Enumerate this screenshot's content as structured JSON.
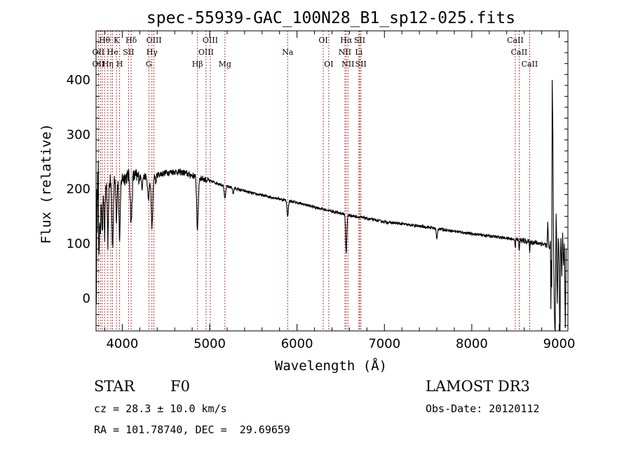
{
  "chart_data": {
    "type": "line",
    "title": "spec-55939-GAC_100N28_B1_sp12-025.fits",
    "xlabel": "Wavelength (Å)",
    "ylabel": "Flux (relative)",
    "xlim": [
      3700,
      9100
    ],
    "ylim": [
      -60,
      490
    ],
    "xticks": [
      4000,
      5000,
      6000,
      7000,
      8000,
      9000
    ],
    "yticks": [
      0,
      100,
      200,
      300,
      400
    ],
    "continuum": [
      [
        3700,
        175
      ],
      [
        3800,
        210
      ],
      [
        3900,
        215
      ],
      [
        4000,
        220
      ],
      [
        4100,
        225
      ],
      [
        4200,
        222
      ],
      [
        4300,
        222
      ],
      [
        4400,
        226
      ],
      [
        4500,
        230
      ],
      [
        4600,
        232
      ],
      [
        4700,
        230
      ],
      [
        4800,
        225
      ],
      [
        5000,
        215
      ],
      [
        5200,
        205
      ],
      [
        5500,
        192
      ],
      [
        5800,
        182
      ],
      [
        6000,
        175
      ],
      [
        6300,
        163
      ],
      [
        6600,
        152
      ],
      [
        7000,
        140
      ],
      [
        7500,
        130
      ],
      [
        8000,
        118
      ],
      [
        8400,
        110
      ],
      [
        8600,
        105
      ],
      [
        8800,
        100
      ],
      [
        8900,
        95
      ],
      [
        8950,
        90
      ],
      [
        9000,
        85
      ],
      [
        9100,
        80
      ]
    ],
    "absorption": [
      [
        3734,
        120,
        4
      ],
      [
        3750,
        80,
        5
      ],
      [
        3771,
        90,
        5
      ],
      [
        3798,
        100,
        6
      ],
      [
        3835,
        110,
        7
      ],
      [
        3889,
        120,
        8
      ],
      [
        3934,
        70,
        6
      ],
      [
        3970,
        110,
        8
      ],
      [
        4102,
        90,
        9
      ],
      [
        4227,
        20,
        5
      ],
      [
        4300,
        40,
        10
      ],
      [
        4340,
        95,
        9
      ],
      [
        4384,
        15,
        5
      ],
      [
        4861,
        95,
        9
      ],
      [
        5175,
        25,
        8
      ],
      [
        5270,
        12,
        5
      ],
      [
        5893,
        30,
        7
      ],
      [
        6563,
        70,
        7
      ],
      [
        7600,
        20,
        6
      ],
      [
        8498,
        12,
        4
      ],
      [
        8542,
        18,
        4
      ],
      [
        8662,
        15,
        4
      ]
    ],
    "red_end_points": [
      [
        8870,
        140
      ],
      [
        8880,
        95
      ],
      [
        8890,
        90
      ],
      [
        8900,
        105
      ],
      [
        8905,
        -20
      ],
      [
        8910,
        70
      ],
      [
        8915,
        20
      ],
      [
        8920,
        400
      ],
      [
        8928,
        300
      ],
      [
        8935,
        120
      ],
      [
        8940,
        40
      ],
      [
        8945,
        -25
      ],
      [
        8950,
        -55
      ],
      [
        8955,
        -60
      ],
      [
        8960,
        60
      ],
      [
        8965,
        155
      ],
      [
        8970,
        120
      ],
      [
        8975,
        30
      ],
      [
        8980,
        -10
      ],
      [
        8985,
        60
      ],
      [
        8990,
        110
      ],
      [
        8995,
        100
      ],
      [
        9000,
        60
      ],
      [
        9005,
        -55
      ],
      [
        9010,
        -60
      ],
      [
        9015,
        80
      ],
      [
        9020,
        110
      ],
      [
        9030,
        40
      ],
      [
        9040,
        120
      ],
      [
        9050,
        60
      ],
      [
        9060,
        100
      ],
      [
        9070,
        -55
      ],
      [
        9080,
        90
      ]
    ],
    "blue_start_points": [
      [
        3700,
        0
      ],
      [
        3703,
        -10
      ],
      [
        3706,
        60
      ],
      [
        3710,
        200
      ],
      [
        3714,
        120
      ],
      [
        3718,
        230
      ],
      [
        3722,
        180
      ],
      [
        3726,
        250
      ]
    ],
    "spectral_lines": [
      {
        "label": "Hθ",
        "wavelength": 3798,
        "row": 1
      },
      {
        "label": "K",
        "wavelength": 3934,
        "row": 1
      },
      {
        "label": "Hδ",
        "wavelength": 4102,
        "row": 1
      },
      {
        "label": "OIII",
        "wavelength": 4363,
        "row": 1
      },
      {
        "label": "OIII",
        "wavelength": 5007,
        "row": 1
      },
      {
        "label": "OI",
        "wavelength": 6300,
        "row": 1
      },
      {
        "label": "Hα",
        "wavelength": 6563,
        "row": 1
      },
      {
        "label": "SII",
        "wavelength": 6717,
        "row": 1
      },
      {
        "label": "CaII",
        "wavelength": 8498,
        "row": 1
      },
      {
        "label": "OII",
        "wavelength": 3727,
        "row": 2
      },
      {
        "label": "He",
        "wavelength": 3889,
        "row": 2
      },
      {
        "label": "SII",
        "wavelength": 4072,
        "row": 2
      },
      {
        "label": "Hγ",
        "wavelength": 4340,
        "row": 2
      },
      {
        "label": "OIII",
        "wavelength": 4959,
        "row": 2
      },
      {
        "label": "Na",
        "wavelength": 5893,
        "row": 2
      },
      {
        "label": "NII",
        "wavelength": 6548,
        "row": 2
      },
      {
        "label": "Li",
        "wavelength": 6708,
        "row": 2
      },
      {
        "label": "CaII",
        "wavelength": 8542,
        "row": 2
      },
      {
        "label": "OII",
        "wavelength": 3727,
        "row": 3
      },
      {
        "label": "Hη",
        "wavelength": 3835,
        "row": 3
      },
      {
        "label": "H",
        "wavelength": 3970,
        "row": 3
      },
      {
        "label": "G",
        "wavelength": 4304,
        "row": 3
      },
      {
        "label": "Hβ",
        "wavelength": 4861,
        "row": 3
      },
      {
        "label": "Mg",
        "wavelength": 5175,
        "row": 3
      },
      {
        "label": "OI",
        "wavelength": 6363,
        "row": 3
      },
      {
        "label": "NII",
        "wavelength": 6583,
        "row": 3
      },
      {
        "label": "SII",
        "wavelength": 6731,
        "row": 3
      },
      {
        "label": "CaII",
        "wavelength": 8662,
        "row": 3
      }
    ],
    "extra_line_markers": [
      3750,
      3771,
      3869,
      4102,
      4340
    ]
  },
  "info": {
    "object_type": "STAR",
    "subclass": "F0",
    "survey": "LAMOST DR3",
    "cz": "cz = 28.3 ± 10.0 km/s",
    "obs_date": "Obs-Date: 20120112",
    "coords": "RA = 101.78740, DEC =  29.69659"
  },
  "colors": {
    "spectrum": "#000000",
    "line_marker": "#b22222",
    "axis": "#000000"
  }
}
